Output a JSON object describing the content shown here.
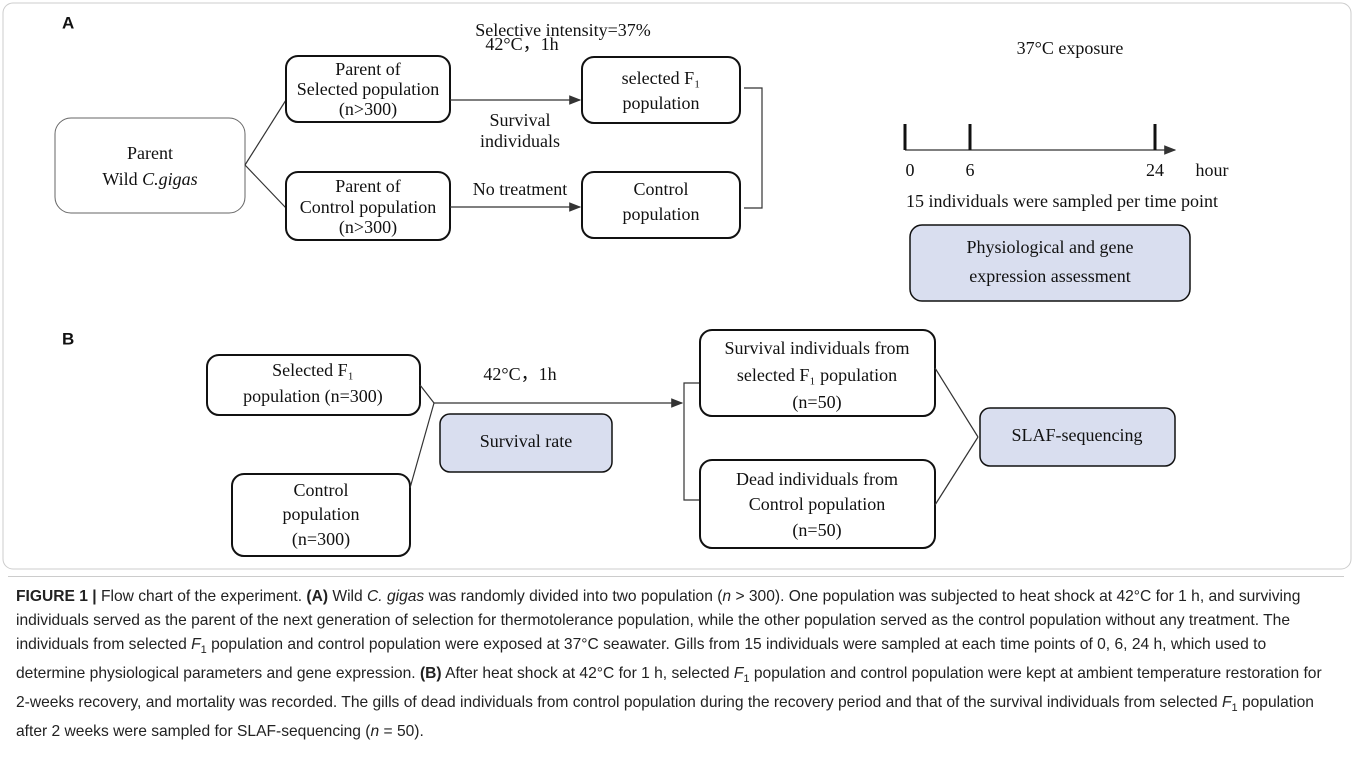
{
  "panel_a": {
    "label": "A",
    "selective_intensity": "Selective intensity=37%",
    "parent": {
      "line1": "Parent",
      "line2_prefix": "Wild ",
      "line2_species": "C.gigas"
    },
    "selected_parent": [
      "Parent of",
      "Selected population",
      "(n>300)"
    ],
    "control_parent": [
      "Parent of",
      "Control population",
      "(n>300)"
    ],
    "heat_treatment": "42°C，1h",
    "survival_note": [
      "Survival",
      "individuals"
    ],
    "no_treatment": "No treatment",
    "selected_f1": [
      "selected F₁",
      "population"
    ],
    "control_population": [
      "Control",
      "population"
    ],
    "exposure_title": "37°C exposure",
    "timeline": [
      "0",
      "6",
      "24"
    ],
    "timeline_unit": "hour",
    "sampling_note": "15 individuals were sampled per time point",
    "assessment": [
      "Physiological and gene",
      "expression assessment"
    ]
  },
  "panel_b": {
    "label": "B",
    "selected_f1": [
      "Selected F₁",
      "population (n=300)"
    ],
    "control": [
      "Control",
      "population",
      "(n=300)"
    ],
    "heat_treatment": "42°C，1h",
    "survival_rate": "Survival rate",
    "survivors": [
      "Survival individuals from",
      "selected F₁ population",
      "(n=50)"
    ],
    "dead": [
      "Dead individuals from",
      "Control population",
      "(n=50)"
    ],
    "sequencing": "SLAF-sequencing"
  },
  "caption": [
    "FIGURE 1 |",
    " Flow chart of the experiment. ",
    "(A)",
    " Wild ",
    "C. gigas",
    " was randomly divided into two population (",
    "n",
    " > 300). One population was subjected to heat shock at 42°C for 1 h, and surviving individuals served as the parent of the next generation of selection for thermotolerance population, while the other population served as the control population without any treatment. The individuals from selected ",
    "F",
    "1",
    " population and control population were exposed at 37°C seawater. Gills from 15 individuals were sampled at each time points of 0, 6, 24 h, which used to determine physiological parameters and gene expression. ",
    "(B)",
    " After heat shock at 42°C for 1 h, selected ",
    "F",
    "1",
    " population and control population were kept at ambient temperature restoration for 2-weeks recovery, and mortality was recorded. The gills of dead individuals from control population during the recovery period and that of the survival individuals from selected ",
    "F",
    "1",
    " population after 2 weeks were sampled for SLAF-sequencing (",
    "n",
    " = 50)."
  ]
}
